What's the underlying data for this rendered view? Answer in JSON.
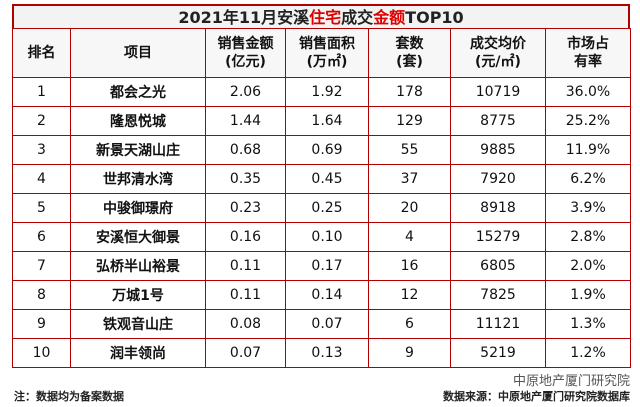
{
  "title": {
    "parts": [
      {
        "text": "2021年11月安溪",
        "color": "#222222"
      },
      {
        "text": "住宅",
        "color": "#e00000"
      },
      {
        "text": "成交",
        "color": "#222222"
      },
      {
        "text": "金额",
        "color": "#e00000"
      },
      {
        "text": "TOP10",
        "color": "#222222"
      }
    ]
  },
  "table": {
    "header": [
      [
        "排名"
      ],
      [
        "项目"
      ],
      [
        "销售金额",
        "(亿元)"
      ],
      [
        "销售面积",
        "(万㎡)"
      ],
      [
        "套数",
        "(套)"
      ],
      [
        "成交均价",
        "(元/㎡)"
      ],
      [
        "市场占",
        "有率"
      ]
    ],
    "rows": [
      [
        "1",
        "都会之光",
        "2.06",
        "1.92",
        "178",
        "10719",
        "36.0%"
      ],
      [
        "2",
        "隆恩悦城",
        "1.44",
        "1.64",
        "129",
        "8775",
        "25.2%"
      ],
      [
        "3",
        "新景天湖山庄",
        "0.68",
        "0.69",
        "55",
        "9885",
        "11.9%"
      ],
      [
        "4",
        "世邦清水湾",
        "0.35",
        "0.45",
        "37",
        "7920",
        "6.2%"
      ],
      [
        "5",
        "中骏御璟府",
        "0.23",
        "0.25",
        "20",
        "8918",
        "3.9%"
      ],
      [
        "6",
        "安溪恒大御景",
        "0.16",
        "0.10",
        "4",
        "15279",
        "2.8%"
      ],
      [
        "7",
        "弘桥半山裕景",
        "0.11",
        "0.17",
        "16",
        "6805",
        "2.0%"
      ],
      [
        "8",
        "万城1号",
        "0.11",
        "0.14",
        "12",
        "7825",
        "1.9%"
      ],
      [
        "9",
        "铁观音山庄",
        "0.08",
        "0.07",
        "6",
        "11121",
        "1.3%"
      ],
      [
        "10",
        "润丰领尚",
        "0.07",
        "0.13",
        "9",
        "5219",
        "1.2%"
      ]
    ]
  },
  "watermark": "中原地产厦门研究院",
  "footer": {
    "note": "注：数据均为备案数据",
    "source": "数据来源：中原地产厦门研究院数据库"
  }
}
